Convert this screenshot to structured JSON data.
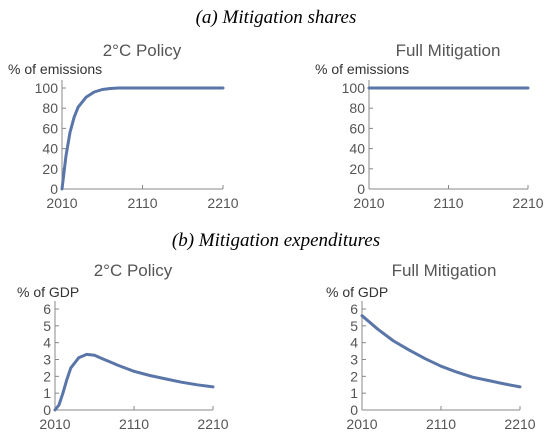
{
  "sections": [
    {
      "label": "(a) Mitigation shares"
    },
    {
      "label": "(b) Mitigation expenditures"
    }
  ],
  "chart_data": [
    {
      "type": "line",
      "title": "2°C Policy",
      "ylabel": "% of emissions",
      "xlabel": "",
      "xlim": [
        2010,
        2210
      ],
      "ylim": [
        0,
        100
      ],
      "x_ticks": [
        "2010",
        "2110",
        "2210"
      ],
      "y_ticks": [
        "0",
        "20",
        "40",
        "60",
        "80",
        "100"
      ],
      "series": [
        {
          "x": [
            2010,
            2015,
            2020,
            2025,
            2030,
            2040,
            2050,
            2060,
            2070,
            2080,
            2090,
            2100,
            2120,
            2150,
            2180,
            2210
          ],
          "values": [
            0,
            33,
            56,
            71,
            81,
            91,
            96,
            98.5,
            99.5,
            100,
            100,
            100,
            100,
            100,
            100,
            100
          ]
        }
      ]
    },
    {
      "type": "line",
      "title": "Full Mitigation",
      "ylabel": "% of emissions",
      "xlabel": "",
      "xlim": [
        2010,
        2210
      ],
      "ylim": [
        0,
        100
      ],
      "x_ticks": [
        "2010",
        "2110",
        "2210"
      ],
      "y_ticks": [
        "0",
        "20",
        "40",
        "60",
        "80",
        "100"
      ],
      "series": [
        {
          "x": [
            2010,
            2060,
            2110,
            2160,
            2210
          ],
          "values": [
            100,
            100,
            100,
            100,
            100
          ]
        }
      ]
    },
    {
      "type": "line",
      "title": "2°C Policy",
      "ylabel": "% of GDP",
      "xlabel": "",
      "xlim": [
        2010,
        2210
      ],
      "ylim": [
        0,
        6
      ],
      "x_ticks": [
        "2010",
        "2110",
        "2210"
      ],
      "y_ticks": [
        "0",
        "1",
        "2",
        "3",
        "4",
        "5",
        "6"
      ],
      "series": [
        {
          "x": [
            2010,
            2015,
            2020,
            2025,
            2030,
            2040,
            2050,
            2060,
            2070,
            2080,
            2090,
            2110,
            2130,
            2150,
            2170,
            2190,
            2210
          ],
          "values": [
            0,
            0.3,
            1.0,
            1.8,
            2.5,
            3.1,
            3.3,
            3.25,
            3.05,
            2.85,
            2.65,
            2.3,
            2.05,
            1.85,
            1.65,
            1.5,
            1.37
          ]
        }
      ]
    },
    {
      "type": "line",
      "title": "Full Mitigation",
      "ylabel": "% of GDP",
      "xlabel": "",
      "xlim": [
        2010,
        2210
      ],
      "ylim": [
        0,
        6
      ],
      "x_ticks": [
        "2010",
        "2110",
        "2210"
      ],
      "y_ticks": [
        "0",
        "1",
        "2",
        "3",
        "4",
        "5",
        "6"
      ],
      "series": [
        {
          "x": [
            2010,
            2030,
            2050,
            2070,
            2090,
            2110,
            2130,
            2150,
            2170,
            2190,
            2210
          ],
          "values": [
            5.6,
            4.8,
            4.1,
            3.55,
            3.05,
            2.6,
            2.25,
            1.95,
            1.75,
            1.55,
            1.37
          ]
        }
      ]
    }
  ]
}
